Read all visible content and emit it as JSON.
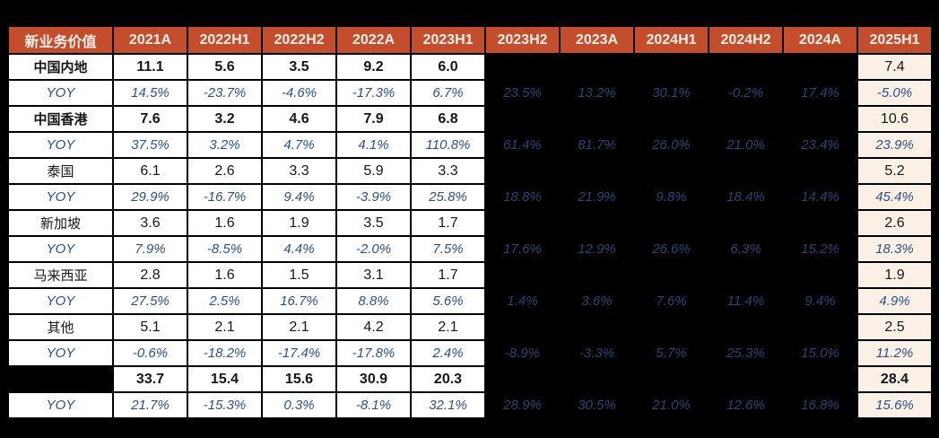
{
  "colors": {
    "page_bg": "#000000",
    "header_bg": "#C44D2B",
    "header_text": "#F8F0EA",
    "cell_bg": "#FFFFFF",
    "cell_text": "#161616",
    "masked_bg": "#000000",
    "last_col_bg": "#FBF0E5",
    "yoy_text": "#2E5185",
    "yoy_text_on_black": "#2B4470",
    "border": "#000000"
  },
  "chart_data": {
    "type": "table",
    "title": "新业务价值",
    "columns": [
      "新业务价值",
      "2021A",
      "2022H1",
      "2022H2",
      "2022A",
      "2023H1",
      "2023H2",
      "2023A",
      "2024H1",
      "2024H2",
      "2024A",
      "2025H1"
    ],
    "masked_value_columns": [
      "2023H2",
      "2023A",
      "2024H1",
      "2024H2",
      "2024A"
    ],
    "legend": "value rows show new business value; YOY rows show year-over-year growth; values for 2023H2–2024A periods are blacked out, only YOY shown",
    "rows": [
      {
        "label": "中国内地",
        "type": "value",
        "bold": true,
        "bold_last": false,
        "label_masked": false,
        "cells": [
          "11.1",
          "5.6",
          "3.5",
          "9.2",
          "6.0",
          "",
          "",
          "",
          "",
          "",
          "7.4"
        ]
      },
      {
        "label": "YOY",
        "type": "yoy",
        "bold": false,
        "bold_last": false,
        "label_masked": false,
        "cells": [
          "14.5%",
          "-23.7%",
          "-4.6%",
          "-17.3%",
          "6.7%",
          "23.5%",
          "13.2%",
          "30.1%",
          "-0.2%",
          "17.4%",
          "-5.0%"
        ]
      },
      {
        "label": "中国香港",
        "type": "value",
        "bold": true,
        "bold_last": false,
        "label_masked": false,
        "cells": [
          "7.6",
          "3.2",
          "4.6",
          "7.9",
          "6.8",
          "",
          "",
          "",
          "",
          "",
          "10.6"
        ]
      },
      {
        "label": "YOY",
        "type": "yoy",
        "bold": false,
        "bold_last": false,
        "label_masked": false,
        "cells": [
          "37.5%",
          "3.2%",
          "4.7%",
          "4.1%",
          "110.8%",
          "61.4%",
          "81.7%",
          "26.0%",
          "21.0%",
          "23.4%",
          "23.9%"
        ]
      },
      {
        "label": "泰国",
        "type": "value",
        "bold": false,
        "bold_last": false,
        "label_masked": false,
        "cells": [
          "6.1",
          "2.6",
          "3.3",
          "5.9",
          "3.3",
          "",
          "",
          "",
          "",
          "",
          "5.2"
        ]
      },
      {
        "label": "YOY",
        "type": "yoy",
        "bold": false,
        "bold_last": false,
        "label_masked": false,
        "cells": [
          "29.9%",
          "-16.7%",
          "9.4%",
          "-3.9%",
          "25.8%",
          "18.8%",
          "21.9%",
          "9.8%",
          "18.4%",
          "14.4%",
          "45.4%"
        ]
      },
      {
        "label": "新加坡",
        "type": "value",
        "bold": false,
        "bold_last": false,
        "label_masked": false,
        "cells": [
          "3.6",
          "1.6",
          "1.9",
          "3.5",
          "1.7",
          "",
          "",
          "",
          "",
          "",
          "2.6"
        ]
      },
      {
        "label": "YOY",
        "type": "yoy",
        "bold": false,
        "bold_last": false,
        "label_masked": false,
        "cells": [
          "7.9%",
          "-8.5%",
          "4.4%",
          "-2.0%",
          "7.5%",
          "17.6%",
          "12.9%",
          "26.6%",
          "6.3%",
          "15.2%",
          "18.3%"
        ]
      },
      {
        "label": "马来西亚",
        "type": "value",
        "bold": false,
        "bold_last": false,
        "label_masked": false,
        "cells": [
          "2.8",
          "1.6",
          "1.5",
          "3.1",
          "1.7",
          "",
          "",
          "",
          "",
          "",
          "1.9"
        ]
      },
      {
        "label": "YOY",
        "type": "yoy",
        "bold": false,
        "bold_last": false,
        "label_masked": false,
        "cells": [
          "27.5%",
          "2.5%",
          "16.7%",
          "8.8%",
          "5.6%",
          "1.4%",
          "3.6%",
          "7.6%",
          "11.4%",
          "9.4%",
          "4.9%"
        ]
      },
      {
        "label": "其他",
        "type": "value",
        "bold": false,
        "bold_last": false,
        "label_masked": false,
        "cells": [
          "5.1",
          "2.1",
          "2.1",
          "4.2",
          "2.1",
          "",
          "",
          "",
          "",
          "",
          "2.5"
        ]
      },
      {
        "label": "YOY",
        "type": "yoy",
        "bold": false,
        "bold_last": false,
        "label_masked": false,
        "cells": [
          "-0.6%",
          "-18.2%",
          "-17.4%",
          "-17.8%",
          "2.4%",
          "-8.9%",
          "-3.3%",
          "5.7%",
          "25.3%",
          "15.0%",
          "11.2%"
        ]
      },
      {
        "label": "",
        "type": "value",
        "bold": true,
        "bold_last": true,
        "label_masked": true,
        "cells": [
          "33.7",
          "15.4",
          "15.6",
          "30.9",
          "20.3",
          "",
          "",
          "",
          "",
          "",
          "28.4"
        ]
      },
      {
        "label": "YOY",
        "type": "yoy",
        "bold": false,
        "bold_last": false,
        "label_masked": false,
        "cells": [
          "21.7%",
          "-15.3%",
          "0.3%",
          "-8.1%",
          "32.1%",
          "28.9%",
          "30.5%",
          "21.0%",
          "12.6%",
          "16.8%",
          "15.6%"
        ]
      }
    ]
  }
}
